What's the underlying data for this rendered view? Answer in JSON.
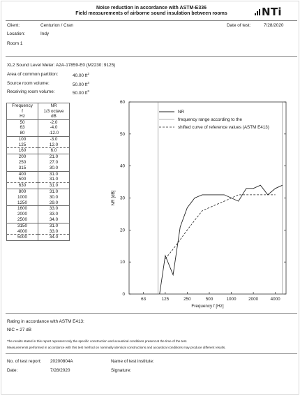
{
  "header": {
    "title_line1": "Noise reduction in accordance with ASTM-E336",
    "title_line2": "Field measurements of airborne sound insulation between rooms",
    "logo_text": "NTi"
  },
  "info": {
    "client_label": "Client:",
    "client_value": "Centurion / Cran",
    "location_label": "Location:",
    "location_value": "Indy",
    "room": "Room 1",
    "date_label": "Date of test:",
    "date_value": "7/28/2020"
  },
  "device": {
    "meter": "XL2 Sound Level Meter: A2A-17859-E0 (M2230: 9125)",
    "area_label": "Area of common partition:",
    "area_value": "40.00 ft",
    "area_exp": "2",
    "source_label": "Source room volume:",
    "source_value": "50.00 ft",
    "source_exp": "3",
    "receiving_label": "Receiving room volume:",
    "receiving_value": "50.00 ft",
    "receiving_exp": "3"
  },
  "table": {
    "col1_header": [
      "Frequency",
      "f",
      "Hz"
    ],
    "col2_header": [
      "NR",
      "1/3 octave",
      "dB"
    ],
    "rows": [
      [
        "50",
        "-2.0"
      ],
      [
        "63",
        "-4.0"
      ],
      [
        "80",
        "-12.0"
      ],
      [
        "100",
        "-3.0"
      ],
      [
        "125",
        "12.0"
      ],
      [
        "160",
        "6.0"
      ],
      [
        "200",
        "21.0"
      ],
      [
        "250",
        "27.0"
      ],
      [
        "315",
        "30.0"
      ],
      [
        "400",
        "31.0"
      ],
      [
        "500",
        "31.0"
      ],
      [
        "630",
        "31.0"
      ],
      [
        "800",
        "31.0"
      ],
      [
        "1000",
        "30.0"
      ],
      [
        "1250",
        "29.0"
      ],
      [
        "1600",
        "33.0"
      ],
      [
        "2000",
        "33.0"
      ],
      [
        "2500",
        "34.0"
      ],
      [
        "3150",
        "31.0"
      ],
      [
        "4000",
        "33.0"
      ],
      [
        "5000",
        "34.0"
      ]
    ]
  },
  "chart_data": {
    "type": "line",
    "ylabel": "NR [dB]",
    "xlabel": "Frequency f [Hz]",
    "xscale": "log",
    "ylim": [
      0,
      60
    ],
    "yticks": [
      0,
      10,
      20,
      30,
      40,
      50,
      60
    ],
    "xticks": [
      "63",
      "125",
      "250",
      "500",
      "1000",
      "2000",
      "4000"
    ],
    "legend_position": "top-right",
    "legend": [
      "NR",
      "frequency range according to the",
      "shifted curve of reference values (ASTM E413)"
    ],
    "freq_range_lines_hz": [
      100,
      5000
    ],
    "series": [
      {
        "name": "NR",
        "style": "solid",
        "x": [
          50,
          63,
          80,
          100,
          125,
          160,
          200,
          250,
          315,
          400,
          500,
          630,
          800,
          1000,
          1250,
          1600,
          2000,
          2500,
          3150,
          4000,
          5000
        ],
        "y": [
          -2,
          -4,
          -12,
          -3,
          12,
          6,
          21,
          27,
          30,
          31,
          31,
          31,
          31,
          30,
          29,
          33,
          33,
          34,
          31,
          33,
          34
        ]
      },
      {
        "name": "shifted curve of reference values (ASTM E413)",
        "style": "dashed",
        "x": [
          125,
          160,
          200,
          250,
          315,
          400,
          500,
          630,
          800,
          1000,
          1250,
          1600,
          2000,
          2500,
          3150,
          4000
        ],
        "y": [
          11,
          14,
          17,
          20,
          23,
          26,
          27,
          28,
          29,
          30,
          31,
          31,
          31,
          31,
          31,
          31
        ]
      }
    ]
  },
  "rating": {
    "title": "Rating in accordance with ASTM E413:",
    "nic": "NIC = 27 dB",
    "note1": "The results stated in this report represent only the specific construction and acoustical conditions present at the time of the test.",
    "note2": "Measurements performed in accordance with this test method on nominally identical constructions and acoustical conditions may produce different results."
  },
  "footer": {
    "report_label": "No. of test report:",
    "report_value": "20200804A",
    "date_label": "Date:",
    "date_value": "7/28/2020",
    "institute_label": "Name of test institute:",
    "signature_label": "Signature:"
  }
}
